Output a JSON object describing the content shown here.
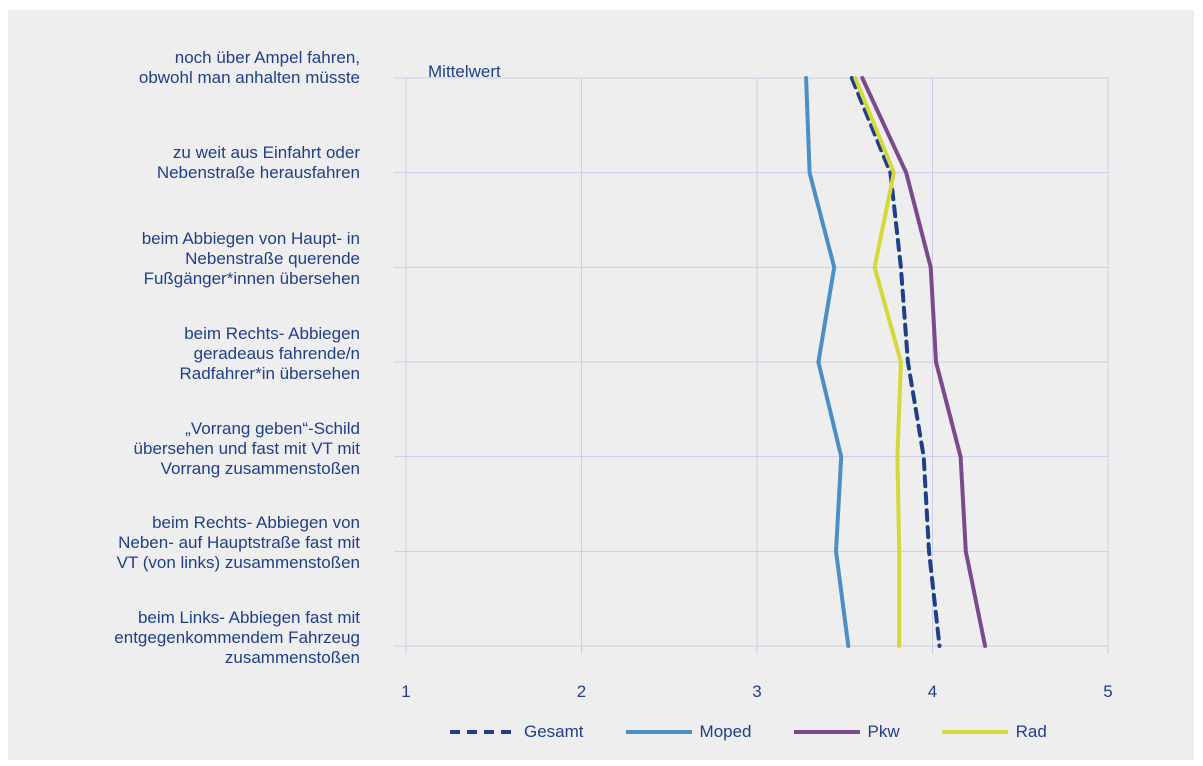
{
  "chart_data": {
    "type": "line",
    "orientation": "horizontal",
    "xlabel": "Mittelwert",
    "xlim": [
      1,
      5
    ],
    "xticks": [
      1,
      2,
      3,
      4,
      5
    ],
    "grid": true,
    "legend_position": "bottom",
    "categories": [
      "noch über Ampel fahren,\nobwohl man anhalten müsste",
      "zu weit aus Einfahrt oder\nNebenstraße herausfahren",
      "beim Abbiegen von Haupt- in\nNebenstraße querende\nFußgänger*innen übersehen",
      "beim Rechts- Abbiegen\ngeradeaus fahrende/n\nRadfahrer*in übersehen",
      "„Vorrang geben“-Schild\nübersehen und fast mit VT mit\nVorrang zusammenstoßen",
      "beim Rechts- Abbiegen von\nNeben- auf Hauptstraße fast mit\nVT (von links) zusammenstoßen",
      "beim Links- Abbiegen fast mit\nentgegenkommendem Fahrzeug\nzusammenstoßen"
    ],
    "series": [
      {
        "name": "Gesamt",
        "color": "#1f3f8a",
        "style": "dashed",
        "values": [
          3.54,
          3.76,
          3.82,
          3.86,
          3.95,
          3.98,
          4.04
        ]
      },
      {
        "name": "Moped",
        "color": "#4a8fc7",
        "style": "solid",
        "values": [
          3.28,
          3.3,
          3.44,
          3.35,
          3.48,
          3.45,
          3.52
        ]
      },
      {
        "name": "Pkw",
        "color": "#7b4a8c",
        "style": "solid",
        "values": [
          3.6,
          3.85,
          3.99,
          4.02,
          4.16,
          4.19,
          4.3
        ]
      },
      {
        "name": "Rad",
        "color": "#d4d83a",
        "style": "solid",
        "values": [
          3.56,
          3.78,
          3.67,
          3.82,
          3.8,
          3.81,
          3.81
        ]
      }
    ]
  }
}
